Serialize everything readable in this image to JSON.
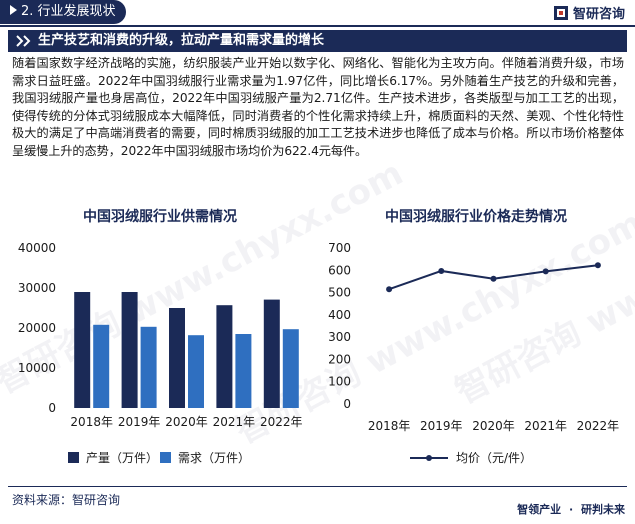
{
  "header": {
    "section_tag": "2. 行业发展现状",
    "brand_name": "智研咨询"
  },
  "banner": {
    "title": "生产技艺和消费的升级，拉动产量和需求量的增长"
  },
  "paragraph": "随着国家数字经济战略的实施，纺织服装产业开始以数字化、网络化、智能化为主攻方向。伴随着消费升级，市场需求日益旺盛。2022年中国羽绒服行业需求量为1.97亿件，同比增长6.17%。另外随着生产技艺的升级和完善，我国羽绒服产量也身居高位，2022年中国羽绒服产量为2.71亿件。生产技术进步，各类版型与加工工艺的出现，使得传统的分体式羽绒服成本大幅降低，同时消费者的个性化需求持续上升，棉质面料的天然、美观、个性化特性极大的满足了中高端消费者的需要，同时棉质羽绒服的加工工艺技术进步也降低了成本与价格。所以市场价格整体呈缓慢上升的态势，2022年中国羽绒服市场均价为622.4元每件。",
  "watermark": "智研咨询 www.chyxx.com",
  "chart_data": [
    {
      "type": "bar",
      "title": "中国羽绒服行业供需情况",
      "categories": [
        "2018年",
        "2019年",
        "2020年",
        "2021年",
        "2022年"
      ],
      "series": [
        {
          "name": "产量（万件）",
          "values": [
            29000,
            29000,
            25000,
            25700,
            27100
          ],
          "color": "#1b2a57"
        },
        {
          "name": "需求（万件）",
          "values": [
            20800,
            20300,
            18200,
            18500,
            19700
          ],
          "color": "#2f6fc0"
        }
      ],
      "ylim": [
        0,
        40000
      ],
      "yticks": [
        0,
        10000,
        20000,
        30000,
        40000
      ],
      "ytick_labels": [
        "0",
        "10000",
        "20000",
        "30000",
        "40000"
      ],
      "grid": false,
      "legend": "bottom"
    },
    {
      "type": "line",
      "title": "中国羽绒服行业价格走势情况",
      "categories": [
        "2018年",
        "2019年",
        "2020年",
        "2021年",
        "2022年"
      ],
      "series": [
        {
          "name": "均价（元/件）",
          "values": [
            515,
            597,
            562,
            595,
            622.4
          ],
          "color": "#1b2a57"
        }
      ],
      "ylim": [
        0,
        700
      ],
      "yticks": [
        0,
        100,
        200,
        300,
        400,
        500,
        600,
        700
      ],
      "ytick_labels": [
        "0",
        "100",
        "200",
        "300",
        "400",
        "500",
        "600",
        "700"
      ],
      "grid": false,
      "legend": "bottom"
    }
  ],
  "footer": {
    "source": "资料来源：智研咨询",
    "brand_left": "智领产业",
    "brand_right": "研判未来"
  }
}
